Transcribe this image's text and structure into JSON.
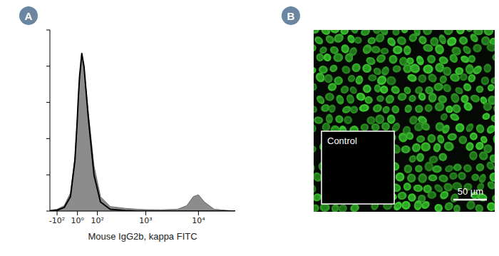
{
  "panel_labels": [
    "A",
    "B"
  ],
  "chart_data": {
    "type": "line",
    "log": "x",
    "tick_labels": "x",
    "x_label": "Mouse IgG2b, kappa FITC",
    "x": [
      -150,
      -100,
      -60,
      -30,
      -10,
      0,
      5,
      10,
      20,
      30,
      50,
      80,
      120,
      200,
      400,
      700,
      1000,
      2000,
      4000,
      6000,
      8000,
      10000,
      13000,
      20000,
      50000
    ],
    "series": [
      {
        "type": "area",
        "color": "#8c8c8c",
        "values": [
          0.5,
          1,
          3,
          10,
          30,
          50,
          62,
          72,
          84,
          79,
          55,
          25,
          8,
          2.5,
          1.5,
          1,
          0.8,
          0.7,
          1,
          3,
          8,
          9,
          5,
          1,
          0
        ]
      },
      {
        "type": "line",
        "color": "#000000",
        "values": [
          0,
          0.5,
          2,
          8,
          28,
          50,
          63,
          74,
          87,
          80,
          52,
          20,
          5,
          1,
          0.3,
          0,
          0,
          0,
          0,
          0,
          0,
          0,
          0,
          0,
          0
        ]
      }
    ],
    "xlim": [
      -150,
      50000
    ],
    "xticks": [
      {
        "value": -100,
        "label": "-10²"
      },
      {
        "value": 1,
        "label": "10⁰"
      },
      {
        "value": 100,
        "label": "10²"
      },
      {
        "value": 1000,
        "label": "10³"
      },
      {
        "value": 10000,
        "label": "10⁴"
      }
    ],
    "ylim": [
      0,
      100
    ],
    "yticks": [
      0,
      20,
      40,
      60,
      80,
      100
    ]
  },
  "image": {
    "inset_label": "Control",
    "scale_bar": "50 µm"
  }
}
